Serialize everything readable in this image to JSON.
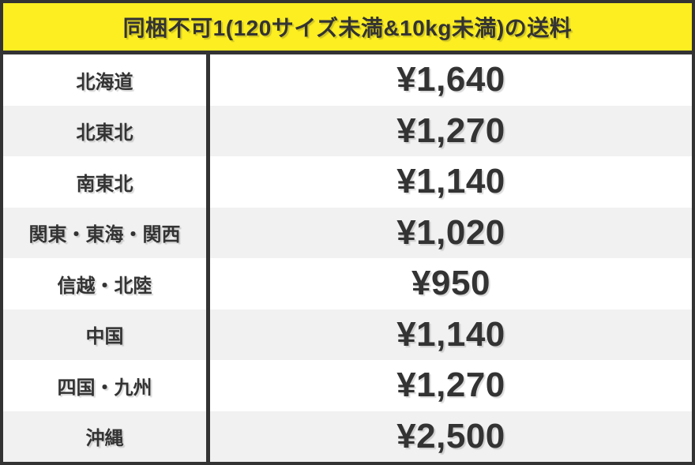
{
  "header": {
    "title": "同梱不可1(120サイズ未満&10kg未満)の送料"
  },
  "table": {
    "rows": [
      {
        "region": "北海道",
        "price": "¥1,640"
      },
      {
        "region": "北東北",
        "price": "¥1,270"
      },
      {
        "region": "南東北",
        "price": "¥1,140"
      },
      {
        "region": "関東・東海・関西",
        "price": "¥1,020"
      },
      {
        "region": "信越・北陸",
        "price": "¥950"
      },
      {
        "region": "中国",
        "price": "¥1,140"
      },
      {
        "region": "四国・九州",
        "price": "¥1,270"
      },
      {
        "region": "沖縄",
        "price": "¥2,500"
      }
    ]
  },
  "colors": {
    "accent_yellow": "#fcee21",
    "dark": "#333333",
    "row_alt_gray": "#f1f1f1",
    "row_white": "#ffffff"
  },
  "chart_data": {
    "type": "table",
    "title": "同梱不可1(120サイズ未満&10kg未満)の送料",
    "categories": [
      "北海道",
      "北東北",
      "南東北",
      "関東・東海・関西",
      "信越・北陸",
      "中国",
      "四国・九州",
      "沖縄"
    ],
    "values": [
      1640,
      1270,
      1140,
      1020,
      950,
      1140,
      1270,
      2500
    ],
    "unit": "¥",
    "legend": false,
    "grid": false
  }
}
